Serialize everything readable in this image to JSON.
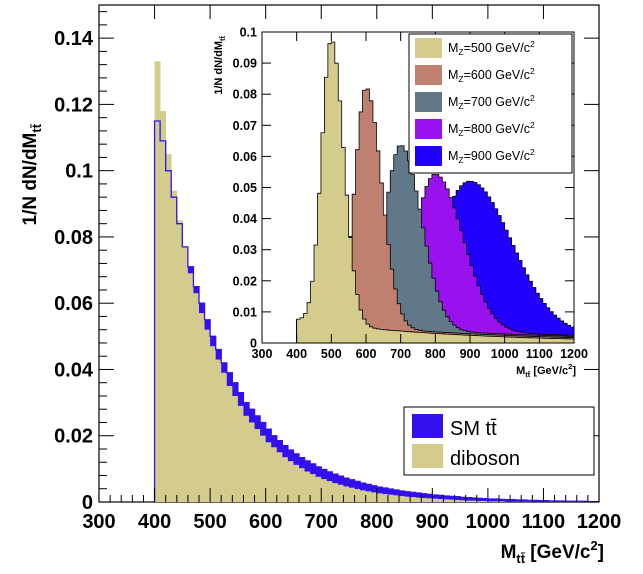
{
  "chart_data": [
    {
      "type": "histogram",
      "xlabel": {
        "main": "M",
        "sub": "tt̄",
        "unit": " [GeV/c",
        "sup": "2",
        "close": "]"
      },
      "ylabel": {
        "main": "1/N dN/dM",
        "sub": "tt̄"
      },
      "xlim": [
        300,
        1200
      ],
      "ylim": [
        0,
        0.15
      ],
      "x_ticks": [
        "300",
        "400",
        "500",
        "600",
        "700",
        "800",
        "900",
        "1000",
        "1100",
        "1200"
      ],
      "y_ticks": [
        "0",
        "0.02",
        "0.04",
        "0.06",
        "0.08",
        "0.1",
        "0.12",
        "0.14"
      ],
      "x_tick_values": [
        300,
        400,
        500,
        600,
        700,
        800,
        900,
        1000,
        1100,
        1200
      ],
      "y_tick_values": [
        0,
        0.02,
        0.04,
        0.06,
        0.08,
        0.1,
        0.12,
        0.14
      ],
      "bin_width": 10,
      "x_start": 400,
      "series": [
        {
          "name": "diboson",
          "style": "filled",
          "color": "#d4cc8c",
          "values": [
            0.133,
            0.118,
            0.105,
            0.094,
            0.085,
            0.077,
            0.069,
            0.063,
            0.057,
            0.052,
            0.047,
            0.043,
            0.039,
            0.035,
            0.032,
            0.029,
            0.026,
            0.024,
            0.022,
            0.02,
            0.018,
            0.0165,
            0.015,
            0.0135,
            0.0123,
            0.0112,
            0.0102,
            0.0092,
            0.0084,
            0.0076,
            0.0069,
            0.0063,
            0.0057,
            0.0052,
            0.0047,
            0.0043,
            0.0039,
            0.0035,
            0.0032,
            0.0029,
            0.0026,
            0.0024,
            0.0022,
            0.002,
            0.0018,
            0.0016,
            0.0015,
            0.0013,
            0.0012,
            0.0011,
            0.001,
            0.0009,
            0.0008,
            0.0007,
            0.0006,
            0.0005,
            0.0004,
            0.0004,
            0.0003,
            0.0003,
            0.0002,
            0.0002,
            0.0002,
            0.0001,
            0.0001,
            0.0001,
            0.0001,
            0.0001,
            0.0,
            0.0,
            0.0,
            0.0,
            0.0,
            0.0,
            0.0,
            0.0,
            0.0,
            0.0,
            0.0,
            0.0
          ]
        },
        {
          "name": "SM tt̄",
          "style": "filled",
          "color": "#3311ee",
          "values": [
            0.115,
            0.109,
            0.1,
            0.092,
            0.084,
            0.077,
            0.071,
            0.065,
            0.06,
            0.055,
            0.05,
            0.046,
            0.042,
            0.039,
            0.036,
            0.033,
            0.03,
            0.028,
            0.026,
            0.024,
            0.022,
            0.02,
            0.0185,
            0.017,
            0.0157,
            0.0145,
            0.0134,
            0.0124,
            0.0115,
            0.0106,
            0.0098,
            0.0091,
            0.0084,
            0.0078,
            0.0072,
            0.0067,
            0.0062,
            0.0057,
            0.0053,
            0.0049,
            0.0045,
            0.0042,
            0.0039,
            0.0036,
            0.0033,
            0.0031,
            0.0029,
            0.0027,
            0.0025,
            0.0023,
            0.0021,
            0.002,
            0.0018,
            0.0017,
            0.0016,
            0.0014,
            0.0013,
            0.0012,
            0.0011,
            0.001,
            0.0009,
            0.0009,
            0.0008,
            0.0007,
            0.0007,
            0.0006,
            0.0006,
            0.0005,
            0.0005,
            0.0004,
            0.0004,
            0.0003,
            0.0003,
            0.0003,
            0.0002,
            0.0002,
            0.0002,
            0.0002,
            0.0001,
            0.0001
          ]
        }
      ],
      "legend": {
        "placement": "bottom-right",
        "entries": [
          {
            "label": "SM tt̄",
            "color": "#3311ee"
          },
          {
            "label": "diboson",
            "color": "#d4cc8c"
          }
        ]
      }
    },
    {
      "type": "histogram",
      "xlabel": {
        "main": "M",
        "sub": "tt̄",
        "unit": " [GeV/c",
        "sup": "2",
        "close": "]"
      },
      "ylabel": {
        "main": "1/N dN/dM",
        "sub": "tt̄"
      },
      "xlim": [
        300,
        1200
      ],
      "ylim": [
        0,
        0.1
      ],
      "x_ticks": [
        "300",
        "400",
        "500",
        "600",
        "700",
        "800",
        "900",
        "1000",
        "1100",
        "1200"
      ],
      "y_ticks": [
        "0",
        "0.01",
        "0.02",
        "0.03",
        "0.04",
        "0.05",
        "0.06",
        "0.07",
        "0.08",
        "0.09",
        "0.1"
      ],
      "x_tick_values": [
        300,
        400,
        500,
        600,
        700,
        800,
        900,
        1000,
        1100,
        1200
      ],
      "y_tick_values": [
        0,
        0.01,
        0.02,
        0.03,
        0.04,
        0.05,
        0.06,
        0.07,
        0.08,
        0.09,
        0.1
      ],
      "bin_width": 10,
      "x_range": [
        400,
        1200
      ],
      "series": [
        {
          "name": "M_Z=900 GeV/c^2",
          "mass": 900,
          "color": "#2200ff",
          "peak": 0.048,
          "sigma_lo": 95,
          "sigma_hi": 120
        },
        {
          "name": "M_Z=800 GeV/c^2",
          "mass": 800,
          "color": "#9911ee",
          "peak": 0.05,
          "sigma_lo": 60,
          "sigma_hi": 80
        },
        {
          "name": "M_Z=700 GeV/c^2",
          "mass": 700,
          "color": "#607888",
          "peak": 0.059,
          "sigma_lo": 45,
          "sigma_hi": 60
        },
        {
          "name": "M_Z=600 GeV/c^2",
          "mass": 600,
          "color": "#c08070",
          "peak": 0.077,
          "sigma_lo": 32,
          "sigma_hi": 45
        },
        {
          "name": "M_Z=500 GeV/c^2",
          "mass": 500,
          "color": "#d4cc8c",
          "peak": 0.092,
          "sigma_lo": 28,
          "sigma_hi": 36
        }
      ],
      "legend": {
        "placement": "top-right",
        "entries": [
          {
            "main": "M",
            "sub": "Z",
            "rest": "=500 GeV/c",
            "sup": "2",
            "color": "#d4cc8c"
          },
          {
            "main": "M",
            "sub": "Z",
            "rest": "=600 GeV/c",
            "sup": "2",
            "color": "#c08070"
          },
          {
            "main": "M",
            "sub": "Z",
            "rest": "=700 GeV/c",
            "sup": "2",
            "color": "#607888"
          },
          {
            "main": "M",
            "sub": "Z",
            "rest": "=800 GeV/c",
            "sup": "2",
            "color": "#9911ee"
          },
          {
            "main": "M",
            "sub": "Z",
            "rest": "=900 GeV/c",
            "sup": "2",
            "color": "#2200ff"
          }
        ]
      }
    }
  ]
}
